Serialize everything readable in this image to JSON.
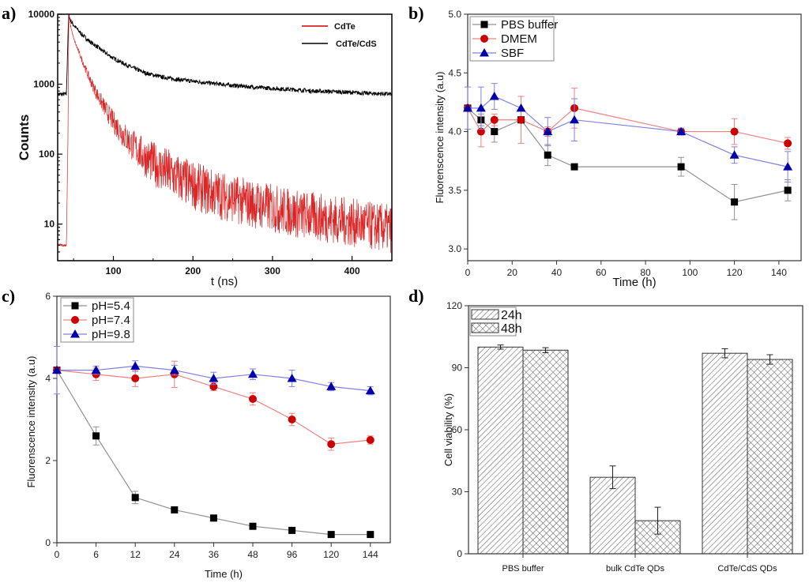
{
  "figure": {
    "panel_labels": [
      "a)",
      "b)",
      "c)",
      "d)"
    ]
  },
  "chart_data": [
    {
      "id": "a",
      "type": "line",
      "title": "",
      "xlabel": "t (ns)",
      "ylabel": "Counts",
      "xlim": [
        30,
        450
      ],
      "ylim": [
        3,
        10000
      ],
      "yscale": "log",
      "xticks": [
        100,
        200,
        300,
        400
      ],
      "yticks": [
        10,
        100,
        1000,
        10000
      ],
      "ytick_labels": [
        "10",
        "100",
        "1000",
        "10000"
      ],
      "legend": "top-right",
      "series": [
        {
          "name": "CdTe",
          "color": "#d40000",
          "x": [
            30,
            38,
            41,
            43,
            44,
            46,
            50,
            60,
            70,
            80,
            90,
            100,
            120,
            140,
            160,
            180,
            200,
            220,
            250,
            280,
            300,
            330,
            350,
            380,
            400,
            420,
            450
          ],
          "y": [
            5,
            5,
            5,
            200,
            10000,
            7000,
            4500,
            2300,
            1200,
            700,
            440,
            290,
            150,
            90,
            62,
            46,
            36,
            29,
            23,
            19,
            17,
            14,
            13,
            11.5,
            10.5,
            9.5,
            8.5
          ]
        },
        {
          "name": "CdTe/CdS",
          "color": "#000000",
          "x": [
            30,
            38,
            41,
            43,
            44,
            46,
            50,
            60,
            70,
            80,
            90,
            100,
            120,
            140,
            160,
            180,
            200,
            220,
            250,
            280,
            300,
            330,
            350,
            380,
            400,
            420,
            450
          ],
          "y": [
            720,
            720,
            720,
            5000,
            10000,
            8200,
            7000,
            5200,
            4100,
            3400,
            2800,
            2350,
            1800,
            1450,
            1270,
            1170,
            1100,
            1040,
            960,
            900,
            870,
            830,
            800,
            780,
            760,
            740,
            720
          ]
        }
      ]
    },
    {
      "id": "b",
      "type": "line",
      "title": "",
      "xlabel": "Time (h)",
      "ylabel": "Fluorenscence intensity (a.u)",
      "xlim": [
        0,
        150
      ],
      "ylim": [
        2.9,
        5.0
      ],
      "xticks": [
        0,
        20,
        40,
        60,
        80,
        100,
        120,
        140
      ],
      "yticks": [
        3.0,
        3.5,
        4.0,
        4.5,
        5.0
      ],
      "ytick_labels": [
        "3.0",
        "3.5",
        "4.0",
        "4.5",
        "5.0"
      ],
      "legend": "top-left",
      "x": [
        0,
        6,
        12,
        24,
        36,
        48,
        96,
        120,
        144
      ],
      "series": [
        {
          "name": "PBS buffer",
          "color": "#000000",
          "line_color": "#909090",
          "marker": "square",
          "values": [
            4.2,
            4.1,
            4.0,
            4.1,
            3.8,
            3.7,
            3.7,
            3.4,
            3.5
          ],
          "errors": [
            0.0,
            0.05,
            0.09,
            0.0,
            0.09,
            0.0,
            0.08,
            0.15,
            0.09
          ]
        },
        {
          "name": "DMEM",
          "color": "#cc0000",
          "line_color": "#f08080",
          "marker": "circle",
          "values": [
            4.2,
            4.0,
            4.1,
            4.1,
            4.0,
            4.2,
            4.0,
            4.0,
            3.9
          ],
          "errors": [
            0.0,
            0.13,
            0.05,
            0.2,
            0.04,
            0.17,
            0.02,
            0.11,
            0.05
          ]
        },
        {
          "name": "SBF",
          "color": "#0000aa",
          "line_color": "#8080e0",
          "marker": "triangle",
          "values": [
            4.2,
            4.2,
            4.3,
            4.2,
            4.0,
            4.1,
            4.0,
            3.8,
            3.7
          ],
          "errors": [
            0.18,
            0.18,
            0.11,
            0.0,
            0.12,
            0.18,
            0.03,
            0.07,
            0.13
          ]
        }
      ]
    },
    {
      "id": "c",
      "type": "line",
      "title": "",
      "xlabel": "Time (h)",
      "ylabel": "Fluorenscence intensity (a.u)",
      "categories": [
        "0",
        "6",
        "12",
        "24",
        "36",
        "48",
        "96",
        "120",
        "144"
      ],
      "ylim": [
        0,
        6
      ],
      "yticks": [
        0,
        2,
        4,
        6
      ],
      "ytick_labels": [
        "0",
        "2",
        "4",
        "6"
      ],
      "legend": "top-left",
      "series": [
        {
          "name": "pH=5.4",
          "color": "#000000",
          "line_color": "#909090",
          "marker": "square",
          "values": [
            4.2,
            2.6,
            1.1,
            0.8,
            0.6,
            0.4,
            0.3,
            0.2,
            0.2
          ],
          "errors": [
            0.0,
            0.22,
            0.15,
            0.0,
            0.0,
            0.0,
            0.0,
            0.0,
            0.0
          ]
        },
        {
          "name": "pH=7.4",
          "color": "#cc0000",
          "line_color": "#f08080",
          "marker": "circle",
          "values": [
            4.2,
            4.1,
            4.0,
            4.1,
            3.8,
            3.5,
            3.0,
            2.4,
            2.5
          ],
          "errors": [
            0.0,
            0.15,
            0.2,
            0.32,
            0.1,
            0.15,
            0.15,
            0.15,
            0.1
          ]
        },
        {
          "name": "pH=9.8",
          "color": "#0000aa",
          "line_color": "#8080e0",
          "marker": "triangle",
          "values": [
            4.2,
            4.2,
            4.3,
            4.2,
            4.0,
            4.1,
            4.0,
            3.8,
            3.7
          ],
          "errors": [
            0.58,
            0.1,
            0.13,
            0.12,
            0.15,
            0.13,
            0.2,
            0.1,
            0.1
          ]
        }
      ]
    },
    {
      "id": "d",
      "type": "bar",
      "title": "",
      "xlabel": "",
      "ylabel": "Cell viability (%)",
      "categories": [
        "PBS buffer",
        "bulk CdTe QDs",
        "CdTe/CdS QDs"
      ],
      "ylim": [
        0,
        120
      ],
      "yticks": [
        0,
        30,
        60,
        90,
        120
      ],
      "ytick_labels": [
        "0",
        "30",
        "60",
        "90",
        "120"
      ],
      "legend": "top-left",
      "series": [
        {
          "name": "24h",
          "pattern": "diagonal-hatch",
          "values": [
            100,
            37,
            97
          ],
          "errors": [
            1,
            5.5,
            2.2
          ]
        },
        {
          "name": "48h",
          "pattern": "cross-hatch",
          "values": [
            98.5,
            16,
            94
          ],
          "errors": [
            1.2,
            6.5,
            2.3
          ]
        }
      ]
    }
  ]
}
